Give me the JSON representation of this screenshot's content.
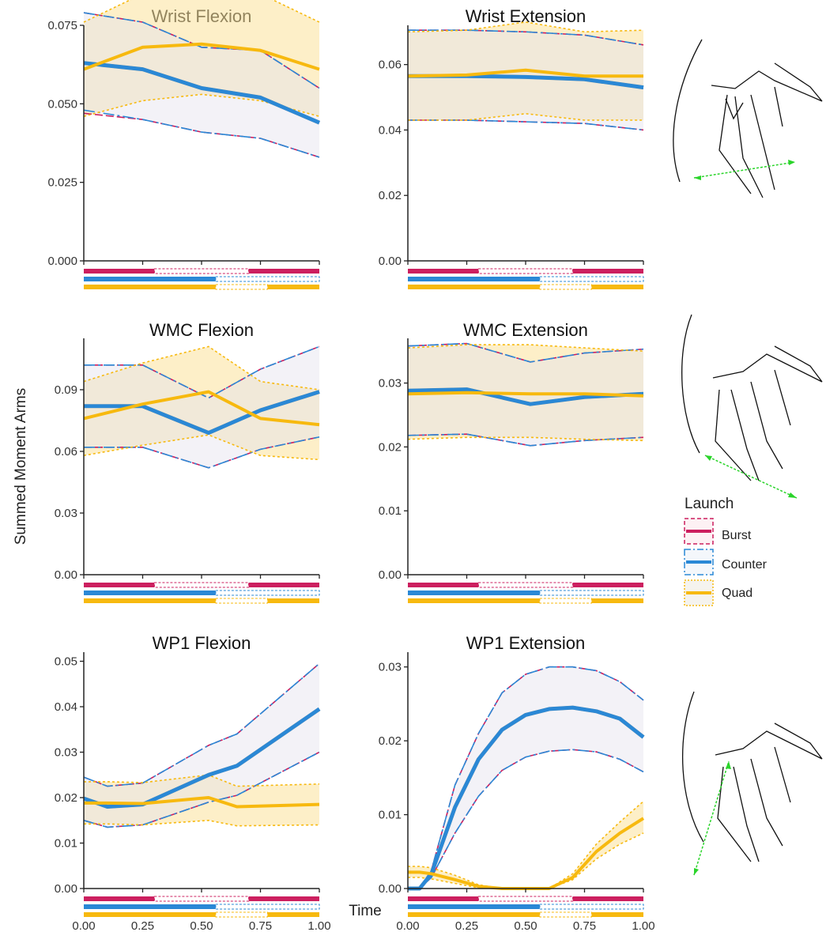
{
  "figure": {
    "y_axis_label": "Summed Moment Arms",
    "x_axis_label": "Time",
    "legend_title": "Launch",
    "legend_items": [
      {
        "label": "Burst",
        "color": "#cc1f5f"
      },
      {
        "label": "Counter",
        "color": "#2a88d6"
      },
      {
        "label": "Quad",
        "color": "#f7b90f"
      }
    ],
    "phase_bars": {
      "Burst": {
        "color": "#cc1f5f",
        "solid": [
          [
            0,
            0.3
          ],
          [
            0.7,
            1.0
          ]
        ],
        "dashed": [
          [
            0.3,
            0.7
          ]
        ]
      },
      "Counter": {
        "color": "#2a88d6",
        "solid": [
          [
            0,
            0.56
          ]
        ],
        "dashed": [
          [
            0.56,
            1.0
          ]
        ]
      },
      "Quad": {
        "color": "#f7b90f",
        "solid": [
          [
            0,
            0.56
          ],
          [
            0.78,
            1.0
          ]
        ],
        "dashed": [
          [
            0.56,
            0.78
          ]
        ]
      }
    },
    "icons": [
      "pterosaur-skeleton-wrist-axis-icon",
      "pterosaur-skeleton-wmc-axis-icon",
      "pterosaur-skeleton-wp1-axis-icon"
    ]
  },
  "chart_data": [
    {
      "type": "line",
      "title": "Wrist Flexion",
      "x": [
        0,
        0.25,
        0.5,
        0.75,
        1.0
      ],
      "xlim": [
        0,
        1
      ],
      "ylim": [
        0,
        0.075
      ],
      "yticks": [
        0.0,
        0.025,
        0.05,
        0.075
      ],
      "ytick_labels": [
        "0.000",
        "0.025",
        "0.050",
        "0.075"
      ],
      "xtick_labels": [
        "0.00",
        "0.25",
        "0.50",
        "0.75",
        "1.00"
      ],
      "series": [
        {
          "name": "Burst",
          "mean": [
            0.063,
            0.061,
            0.055,
            0.052,
            0.044
          ],
          "upper": [
            0.079,
            0.076,
            0.068,
            0.067,
            0.055
          ],
          "lower": [
            0.047,
            0.045,
            0.041,
            0.039,
            0.033
          ]
        },
        {
          "name": "Counter",
          "mean": [
            0.063,
            0.061,
            0.055,
            0.052,
            0.044
          ],
          "upper": [
            0.079,
            0.076,
            0.068,
            0.067,
            0.055
          ],
          "lower": [
            0.048,
            0.045,
            0.041,
            0.039,
            0.033
          ]
        },
        {
          "name": "Quad",
          "mean": [
            0.061,
            0.068,
            0.069,
            0.067,
            0.061
          ],
          "upper": [
            0.076,
            0.085,
            0.087,
            0.085,
            0.076
          ],
          "lower": [
            0.046,
            0.051,
            0.053,
            0.051,
            0.046
          ]
        }
      ]
    },
    {
      "type": "line",
      "title": "Wrist Extension",
      "x": [
        0,
        0.25,
        0.5,
        0.75,
        1.0
      ],
      "xlim": [
        0,
        1
      ],
      "ylim": [
        0,
        0.072
      ],
      "yticks": [
        0.0,
        0.02,
        0.04,
        0.06
      ],
      "ytick_labels": [
        "0.00",
        "0.02",
        "0.04",
        "0.06"
      ],
      "xtick_labels": [
        "0.00",
        "0.25",
        "0.50",
        "0.75",
        "1.00"
      ],
      "series": [
        {
          "name": "Burst",
          "mean": [
            0.0565,
            0.0565,
            0.0562,
            0.0555,
            0.053
          ],
          "upper": [
            0.0705,
            0.0705,
            0.07,
            0.069,
            0.066
          ],
          "lower": [
            0.043,
            0.043,
            0.0425,
            0.042,
            0.04
          ]
        },
        {
          "name": "Counter",
          "mean": [
            0.0565,
            0.0565,
            0.0562,
            0.0555,
            0.053
          ],
          "upper": [
            0.0705,
            0.0705,
            0.07,
            0.069,
            0.066
          ],
          "lower": [
            0.043,
            0.043,
            0.0425,
            0.042,
            0.04
          ]
        },
        {
          "name": "Quad",
          "mean": [
            0.0565,
            0.0568,
            0.0583,
            0.0565,
            0.0565
          ],
          "upper": [
            0.07,
            0.0705,
            0.073,
            0.07,
            0.0705
          ],
          "lower": [
            0.043,
            0.043,
            0.045,
            0.043,
            0.043
          ]
        }
      ]
    },
    {
      "type": "line",
      "title": "WMC Flexion",
      "x": [
        0,
        0.25,
        0.53,
        0.75,
        1.0
      ],
      "xlim": [
        0,
        1
      ],
      "ylim": [
        0,
        0.115
      ],
      "yticks": [
        0.0,
        0.03,
        0.06,
        0.09
      ],
      "ytick_labels": [
        "0.00",
        "0.03",
        "0.06",
        "0.09"
      ],
      "xtick_labels": [
        "0.00",
        "0.25",
        "0.50",
        "0.75",
        "1.00"
      ],
      "series": [
        {
          "name": "Burst",
          "mean": [
            0.082,
            0.082,
            0.069,
            0.08,
            0.089
          ],
          "upper": [
            0.102,
            0.102,
            0.086,
            0.1,
            0.111
          ],
          "lower": [
            0.062,
            0.062,
            0.052,
            0.061,
            0.067
          ]
        },
        {
          "name": "Counter",
          "mean": [
            0.082,
            0.082,
            0.069,
            0.08,
            0.089
          ],
          "upper": [
            0.102,
            0.102,
            0.086,
            0.1,
            0.111
          ],
          "lower": [
            0.062,
            0.062,
            0.052,
            0.061,
            0.067
          ]
        },
        {
          "name": "Quad",
          "mean": [
            0.076,
            0.083,
            0.089,
            0.076,
            0.073
          ],
          "upper": [
            0.094,
            0.103,
            0.111,
            0.094,
            0.09
          ],
          "lower": [
            0.058,
            0.063,
            0.068,
            0.058,
            0.056
          ]
        }
      ]
    },
    {
      "type": "line",
      "title": "WMC Extension",
      "x": [
        0,
        0.25,
        0.52,
        0.75,
        1.0
      ],
      "xlim": [
        0,
        1
      ],
      "ylim": [
        0,
        0.037
      ],
      "yticks": [
        0.0,
        0.01,
        0.02,
        0.03
      ],
      "ytick_labels": [
        "0.00",
        "0.01",
        "0.02",
        "0.03"
      ],
      "xtick_labels": [
        "0.00",
        "0.25",
        "0.50",
        "0.75",
        "1.00"
      ],
      "series": [
        {
          "name": "Burst",
          "mean": [
            0.0288,
            0.029,
            0.0267,
            0.0278,
            0.0283
          ],
          "upper": [
            0.0358,
            0.0362,
            0.0333,
            0.0347,
            0.0353
          ],
          "lower": [
            0.0218,
            0.022,
            0.0202,
            0.021,
            0.0215
          ]
        },
        {
          "name": "Counter",
          "mean": [
            0.0288,
            0.029,
            0.0267,
            0.0278,
            0.0283
          ],
          "upper": [
            0.0358,
            0.0362,
            0.0333,
            0.0347,
            0.0353
          ],
          "lower": [
            0.0218,
            0.022,
            0.0202,
            0.021,
            0.0215
          ]
        },
        {
          "name": "Quad",
          "mean": [
            0.0283,
            0.0285,
            0.0283,
            0.0283,
            0.028
          ],
          "upper": [
            0.0355,
            0.036,
            0.036,
            0.0355,
            0.035
          ],
          "lower": [
            0.0212,
            0.0215,
            0.0215,
            0.0212,
            0.021
          ]
        }
      ]
    },
    {
      "type": "line",
      "title": "WP1 Flexion",
      "x": [
        0,
        0.1,
        0.25,
        0.53,
        0.65,
        1.0
      ],
      "xlim": [
        0,
        1
      ],
      "ylim": [
        0,
        0.052
      ],
      "yticks": [
        0.0,
        0.01,
        0.02,
        0.03,
        0.04,
        0.05
      ],
      "ytick_labels": [
        "0.00",
        "0.01",
        "0.02",
        "0.03",
        "0.04",
        "0.05"
      ],
      "xtick_labels": [
        "0.00",
        "0.25",
        "0.50",
        "0.75",
        "1.00"
      ],
      "series": [
        {
          "name": "Burst",
          "mean": [
            0.0198,
            0.018,
            0.0185,
            0.025,
            0.027,
            0.0395
          ],
          "upper": [
            0.0245,
            0.0225,
            0.0232,
            0.0315,
            0.034,
            0.0495
          ],
          "lower": [
            0.015,
            0.0135,
            0.014,
            0.019,
            0.0205,
            0.03
          ]
        },
        {
          "name": "Counter",
          "mean": [
            0.0198,
            0.018,
            0.0185,
            0.025,
            0.027,
            0.0395
          ],
          "upper": [
            0.0245,
            0.0225,
            0.0232,
            0.0315,
            0.034,
            0.0495
          ],
          "lower": [
            0.015,
            0.0135,
            0.014,
            0.019,
            0.0205,
            0.03
          ]
        },
        {
          "name": "Quad",
          "mean": [
            0.0188,
            0.0188,
            0.0187,
            0.02,
            0.018,
            0.0185
          ],
          "upper": [
            0.0235,
            0.0235,
            0.0233,
            0.025,
            0.0225,
            0.023
          ],
          "lower": [
            0.0142,
            0.0142,
            0.014,
            0.015,
            0.0138,
            0.014
          ]
        }
      ]
    },
    {
      "type": "line",
      "title": "WP1 Extension",
      "x": [
        0,
        0.05,
        0.1,
        0.2,
        0.3,
        0.4,
        0.5,
        0.6,
        0.7,
        0.8,
        0.9,
        1.0
      ],
      "xlim": [
        0,
        1
      ],
      "ylim": [
        0,
        0.032
      ],
      "yticks": [
        0.0,
        0.01,
        0.02,
        0.03
      ],
      "ytick_labels": [
        "0.00",
        "0.01",
        "0.02",
        "0.03"
      ],
      "xtick_labels": [
        "0.00",
        "0.25",
        "0.50",
        "0.75",
        "1.00"
      ],
      "series": [
        {
          "name": "Burst",
          "mean": [
            0,
            0,
            0.002,
            0.011,
            0.0175,
            0.0215,
            0.0235,
            0.0243,
            0.0245,
            0.024,
            0.023,
            0.0205
          ],
          "upper": [
            0,
            0,
            0.0025,
            0.014,
            0.021,
            0.0265,
            0.029,
            0.03,
            0.03,
            0.0295,
            0.028,
            0.0255
          ],
          "lower": [
            0,
            0,
            0.0015,
            0.0075,
            0.0125,
            0.016,
            0.0178,
            0.0186,
            0.0188,
            0.0185,
            0.0175,
            0.0158
          ]
        },
        {
          "name": "Counter",
          "mean": [
            0,
            0,
            0.002,
            0.011,
            0.0175,
            0.0215,
            0.0235,
            0.0243,
            0.0245,
            0.024,
            0.023,
            0.0205
          ],
          "upper": [
            0,
            0,
            0.0025,
            0.014,
            0.021,
            0.0265,
            0.029,
            0.03,
            0.03,
            0.0295,
            0.028,
            0.0255
          ],
          "lower": [
            0,
            0,
            0.0015,
            0.0075,
            0.0125,
            0.016,
            0.0178,
            0.0186,
            0.0188,
            0.0185,
            0.0175,
            0.0158
          ]
        },
        {
          "name": "Quad",
          "mean": [
            0.0022,
            0.0022,
            0.002,
            0.0012,
            0.0003,
            0,
            0,
            0,
            0.0015,
            0.005,
            0.0075,
            0.0095
          ],
          "upper": [
            0.003,
            0.003,
            0.0028,
            0.0018,
            0.0005,
            0,
            0,
            0,
            0.002,
            0.006,
            0.009,
            0.0118
          ],
          "lower": [
            0.0015,
            0.0015,
            0.0013,
            0.0007,
            0.0001,
            0,
            0,
            0,
            0.0012,
            0.004,
            0.006,
            0.0075
          ]
        }
      ]
    }
  ]
}
